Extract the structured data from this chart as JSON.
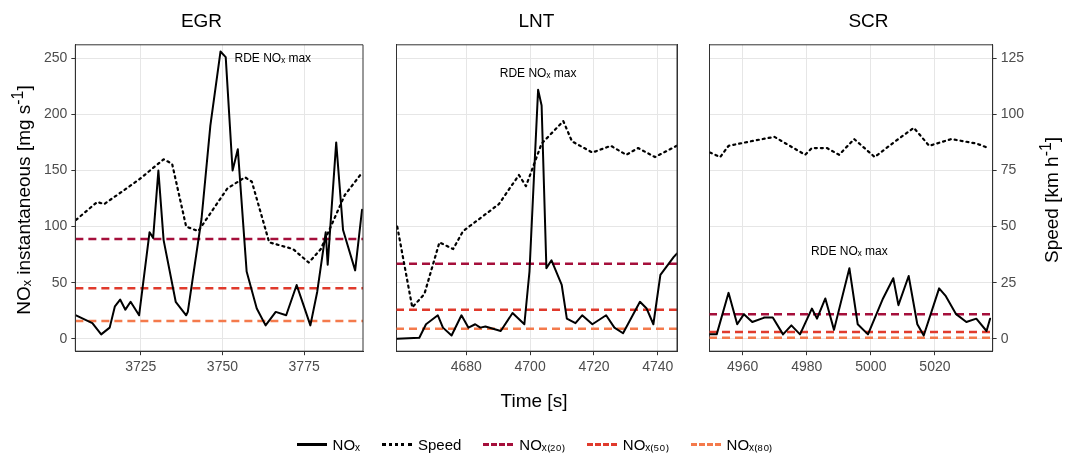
{
  "chart_data": [
    {
      "type": "line",
      "title": "EGR",
      "ylabel": "NOₓ instantaneous [mg s$^{-1}$]",
      "xlim": [
        3705,
        3793
      ],
      "xticks": [
        3725,
        3750,
        3775
      ],
      "ylim": [
        -11,
        262
      ],
      "yticks": [
        0,
        50,
        100,
        150,
        200,
        250
      ],
      "y2lim": [
        -5.5,
        131
      ],
      "grid": true,
      "marker": "none",
      "series": [
        {
          "color": "#000000",
          "line_style": "solid",
          "x": [
            3705.2,
            3710.2,
            3712.9,
            3715.5,
            3717.1,
            3718.7,
            3720.3,
            3721.9,
            3724.5,
            3727.7,
            3728.8,
            3730.4,
            3732.0,
            3735.7,
            3738.9,
            3739.4,
            3743.6,
            3746.3,
            3749.4,
            3751.0,
            3753.1,
            3754.7,
            3757.4,
            3760.5,
            3763.2,
            3766.3,
            3769.5,
            3772.7,
            3774.8,
            3776.9,
            3779.0,
            3781.6,
            3782.2,
            3784.8,
            3786.9,
            3790.6,
            3792.7
          ],
          "values": [
            21,
            14,
            4,
            10,
            29,
            35,
            26,
            33,
            21,
            95,
            90,
            150,
            88,
            33,
            21,
            24,
            107,
            190,
            256,
            251,
            150,
            169,
            60,
            27,
            12,
            24,
            21,
            48,
            30,
            12,
            42,
            95,
            66,
            175,
            97,
            61,
            115
          ]
        },
        {
          "color": "#000000",
          "line_style": "dotted",
          "axis": "y2",
          "x": [
            3705.2,
            3711.7,
            3713.8,
            3724.5,
            3732.0,
            3734.6,
            3738.9,
            3742.6,
            3751.5,
            3756.9,
            3759.0,
            3764.3,
            3771.6,
            3776.4,
            3780.1,
            3787.4,
            3792.7
          ],
          "values": [
            53,
            61,
            60,
            71,
            80,
            78,
            50,
            48,
            67,
            72,
            70,
            43,
            40,
            34,
            40,
            64,
            74
          ]
        }
      ],
      "ref_lines": [
        {
          "axis": "y",
          "value": 89,
          "color": "#a50f3b",
          "line_style": "dashed"
        },
        {
          "axis": "y",
          "value": 45,
          "color": "#e03a2c",
          "line_style": "dashed"
        },
        {
          "axis": "y",
          "value": 16,
          "color": "#f47a4c",
          "line_style": "dashed"
        }
      ],
      "annotations": [
        "RDE NOₓ max"
      ]
    },
    {
      "type": "line",
      "title": "LNT",
      "xlabel": "Time [s]",
      "xlim": [
        4658,
        4746
      ],
      "xticks": [
        4680,
        4700,
        4720,
        4740
      ],
      "ylim": [
        -11,
        262
      ],
      "yticks": [
        0,
        50,
        100,
        150,
        200,
        250
      ],
      "y2lim": [
        -5.5,
        131
      ],
      "y2ticks": [
        0,
        25,
        50,
        75,
        100,
        125
      ],
      "grid": true,
      "tick_labels": "x",
      "marker": "none",
      "legend": "bottom",
      "series": [
        {
          "name": "NOₓ",
          "color": "#000000",
          "line_style": "solid",
          "x": [
            4658.4,
            4665.3,
            4667.4,
            4671.1,
            4672.7,
            4675.4,
            4678.5,
            4680.7,
            4682.8,
            4684.4,
            4686.0,
            4690.8,
            4694.5,
            4698.2,
            4699.8,
            4702.5,
            4703.6,
            4705.1,
            4706.7,
            4709.9,
            4711.5,
            4714.2,
            4716.3,
            4719.5,
            4723.8,
            4726.4,
            4729.1,
            4734.4,
            4736.5,
            4738.6,
            4740.8,
            4745.0,
            4746.0
          ],
          "values": [
            0,
            1,
            13,
            21,
            10,
            3,
            21,
            10,
            13,
            10,
            11,
            7,
            23,
            13,
            60,
            222,
            208,
            63,
            70,
            48,
            18,
            14,
            21,
            13,
            21,
            10,
            5,
            33,
            27,
            13,
            57,
            73,
            76
          ]
        },
        {
          "name": "Speed",
          "color": "#000000",
          "line_style": "dotted",
          "axis": "y2",
          "x": [
            4658.4,
            4663.1,
            4666.9,
            4671.6,
            4675.9,
            4679.0,
            4690.2,
            4696.5,
            4698.7,
            4703.6,
            4710.4,
            4713.1,
            4719.5,
            4725.3,
            4730.1,
            4733.8,
            4739.1,
            4745.9
          ],
          "values": [
            50,
            14,
            20,
            43,
            40,
            48,
            60,
            73,
            68,
            87,
            97,
            88,
            83,
            86,
            82,
            85,
            81,
            86
          ]
        }
      ],
      "ref_lines": [
        {
          "axis": "y",
          "value": 67,
          "label": "NOₓ₍₂₀₎",
          "color": "#a50f3b",
          "line_style": "dashed"
        },
        {
          "axis": "y",
          "value": 26,
          "label": "NOₓ₍₅₀₎",
          "color": "#e03a2c",
          "line_style": "dashed"
        },
        {
          "axis": "y",
          "value": 9,
          "label": "NOₓ₍₈₀₎",
          "color": "#f47a4c",
          "line_style": "dashed"
        }
      ],
      "annotations": [
        "RDE NOₓ max"
      ]
    },
    {
      "type": "line",
      "title": "SCR",
      "y2label": "Speed [km h$^{-1}$]",
      "xlim": [
        4949.5,
        5038
      ],
      "xticks": [
        4960,
        4980,
        5000,
        5020
      ],
      "ylim": [
        -11,
        262
      ],
      "y2lim": [
        -5.5,
        131
      ],
      "y2ticks": [
        0,
        25,
        50,
        75,
        100,
        125
      ],
      "grid": true,
      "marker": "none",
      "series": [
        {
          "color": "#000000",
          "line_style": "solid",
          "x": [
            4949.8,
            4951.9,
            4955.6,
            4958.3,
            4960.4,
            4963.0,
            4966.8,
            4969.4,
            4972.6,
            4975.2,
            4977.9,
            4981.6,
            4983.2,
            4985.8,
            4988.5,
            4993.3,
            4995.9,
            4999.1,
            5003.8,
            5007.0,
            5008.6,
            5011.8,
            5014.5,
            5016.5,
            5021.3,
            5023.4,
            5026.6,
            5029.8,
            5032.9,
            5036.1,
            5037.2
          ],
          "values": [
            4,
            4,
            41,
            13,
            22,
            15,
            19,
            19,
            4,
            12,
            4,
            27,
            18,
            36,
            8,
            63,
            13,
            4,
            36,
            54,
            30,
            56,
            13,
            3,
            45,
            38,
            22,
            15,
            18,
            7,
            18
          ]
        },
        {
          "color": "#000000",
          "line_style": "dotted",
          "axis": "y2",
          "x": [
            4949.8,
            4953.0,
            4955.6,
            4962.5,
            4969.9,
            4979.5,
            4981.6,
            4986.3,
            4990.1,
            4994.8,
            5001.2,
            5007.6,
            5013.4,
            5018.2,
            5025.1,
            5033.0,
            5036.7
          ],
          "values": [
            83,
            81,
            86,
            88,
            90,
            82,
            85,
            85,
            82,
            89,
            81,
            88,
            94,
            86,
            89,
            87,
            85
          ]
        }
      ],
      "ref_lines": [
        {
          "axis": "y",
          "value": 22,
          "color": "#a50f3b",
          "line_style": "dashed"
        },
        {
          "axis": "y",
          "value": 6,
          "color": "#e03a2c",
          "line_style": "dashed"
        },
        {
          "axis": "y",
          "value": 1,
          "color": "#f47a4c",
          "line_style": "dashed"
        }
      ],
      "annotations": [
        "RDE NOₓ max"
      ]
    }
  ]
}
